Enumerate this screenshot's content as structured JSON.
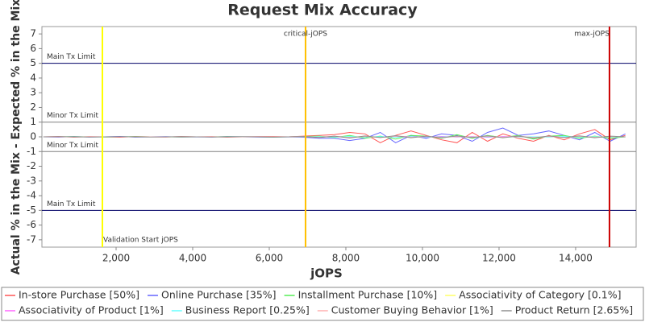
{
  "chart_data": {
    "type": "line",
    "title": "Request Mix Accuracy",
    "x_label": "jOPS",
    "y_label": "Actual % in the Mix - Expected % in the Mix",
    "xlim": [
      63,
      15580
    ],
    "ylim": [
      -7.5,
      7.5
    ],
    "xticks": [
      {
        "value": 2000,
        "label": "2,000"
      },
      {
        "value": 4000,
        "label": "4,000"
      },
      {
        "value": 6000,
        "label": "6,000"
      },
      {
        "value": 8000,
        "label": "8,000"
      },
      {
        "value": 10000,
        "label": "10,000"
      },
      {
        "value": 12000,
        "label": "12,000"
      },
      {
        "value": 14000,
        "label": "14,000"
      }
    ],
    "yticks": [
      -7,
      -6,
      -5,
      -4,
      -3,
      -2,
      -1,
      0,
      1,
      2,
      3,
      4,
      5,
      6,
      7
    ],
    "grid": false,
    "legend": "bottom",
    "hlines": [
      {
        "value": 5,
        "label": "Main Tx Limit",
        "color": "#000066"
      },
      {
        "value": 1,
        "label": "Minor Tx Limit",
        "color": "#808080"
      },
      {
        "value": -1,
        "label": "Minor Tx Limit",
        "color": "#808080"
      },
      {
        "value": -5,
        "label": "Main Tx Limit",
        "color": "#000066"
      }
    ],
    "vlines": [
      {
        "value": 1642,
        "label": "Validation Start jOPS",
        "color": "#ffff00"
      },
      {
        "value": 6947,
        "label": "critical-jOPS",
        "color": "#ffc000"
      },
      {
        "value": 14884,
        "label": "max-jOPS",
        "color": "#cc0000"
      }
    ],
    "x": [
      100,
      500,
      900,
      1300,
      1700,
      2100,
      2500,
      2900,
      3300,
      3700,
      4100,
      4500,
      4900,
      5300,
      5700,
      6100,
      6500,
      6900,
      7300,
      7700,
      8100,
      8500,
      8900,
      9300,
      9700,
      10100,
      10500,
      10900,
      11300,
      11700,
      12100,
      12500,
      12900,
      13300,
      13700,
      14100,
      14500,
      14900,
      15300
    ],
    "series": [
      {
        "name": "In-store Purchase [50%]",
        "color": "#ff5555",
        "values": [
          0,
          0.02,
          -0.02,
          0.01,
          0,
          -0.03,
          0.02,
          0,
          -0.01,
          0.02,
          0,
          0.01,
          -0.02,
          0,
          0.01,
          0.02,
          0,
          0.05,
          0.1,
          0.15,
          0.3,
          0.2,
          -0.4,
          0.1,
          0.4,
          0.1,
          -0.2,
          -0.4,
          0.3,
          -0.3,
          0.2,
          -0.1,
          -0.3,
          0.1,
          -0.2,
          0.2,
          0.5,
          -0.2,
          0.1
        ]
      },
      {
        "name": "Online Purchase [35%]",
        "color": "#6666ff",
        "values": [
          0,
          -0.02,
          0.02,
          -0.01,
          0,
          0.03,
          -0.02,
          0,
          0.01,
          -0.02,
          0,
          -0.01,
          0.02,
          0,
          -0.01,
          -0.02,
          0,
          -0.03,
          -0.1,
          -0.1,
          -0.25,
          -0.1,
          0.3,
          -0.4,
          0.1,
          -0.1,
          0.2,
          0.1,
          -0.3,
          0.3,
          0.6,
          0.1,
          0.2,
          0.4,
          0.1,
          -0.2,
          0.3,
          -0.3,
          0.2
        ]
      },
      {
        "name": "Installment Purchase [10%]",
        "color": "#55ee55",
        "values": [
          0,
          0,
          0.01,
          0,
          -0.01,
          0,
          0.01,
          0,
          0,
          -0.01,
          0,
          0,
          0.01,
          0,
          0,
          -0.01,
          0,
          0.02,
          0.05,
          -0.05,
          0.1,
          -0.1,
          0.05,
          -0.15,
          0.1,
          0.05,
          -0.1,
          0.15,
          -0.1,
          0.1,
          -0.05,
          0.1,
          -0.15,
          0.05,
          0.1,
          -0.1,
          0.05,
          -0.1,
          0
        ]
      },
      {
        "name": "Associativity of Category [0.1%]",
        "color": "#ffff66",
        "values": [
          0,
          0,
          0,
          0,
          0,
          0,
          0,
          0,
          0,
          0,
          0,
          0,
          0,
          0,
          0,
          0,
          0,
          0,
          0.01,
          -0.01,
          0.01,
          0,
          -0.01,
          0.01,
          0,
          -0.01,
          0.01,
          0,
          -0.01,
          0.01,
          0,
          0,
          -0.01,
          0.01,
          0,
          -0.01,
          0.01,
          0,
          0
        ]
      },
      {
        "name": "Associativity of Product [1%]",
        "color": "#ff66ff",
        "values": [
          0,
          0,
          0,
          0,
          0,
          0,
          0,
          0,
          0,
          0,
          0,
          0,
          0,
          0,
          0,
          0,
          0,
          0.01,
          -0.02,
          0.03,
          -0.02,
          0.02,
          -0.03,
          0.02,
          0.01,
          -0.02,
          0.03,
          -0.01,
          0.02,
          -0.03,
          0.02,
          0.01,
          -0.02,
          0.03,
          -0.01,
          0.02,
          -0.03,
          0.01,
          0
        ]
      },
      {
        "name": "Business Report [0.25%]",
        "color": "#66ffff",
        "values": [
          0,
          0,
          0,
          0,
          0,
          0,
          0,
          0,
          0,
          0,
          0,
          0,
          0,
          0,
          0,
          0,
          0,
          0,
          0.01,
          -0.01,
          0.02,
          -0.01,
          0.01,
          -0.02,
          0.01,
          0,
          -0.01,
          0.02,
          -0.01,
          0.01,
          -0.02,
          0.01,
          0,
          -0.01,
          0.02,
          -0.01,
          0.01,
          -0.01,
          0
        ]
      },
      {
        "name": "Customer Buying Behavior [1%]",
        "color": "#ffb0b0",
        "values": [
          0,
          0,
          0,
          0,
          0,
          0,
          0,
          0,
          0,
          0,
          0,
          0,
          0,
          0,
          0,
          0,
          0,
          0.02,
          -0.03,
          0.04,
          -0.05,
          0.03,
          -0.04,
          0.05,
          -0.03,
          0.04,
          -0.05,
          0.03,
          -0.02,
          0.04,
          -0.03,
          0.05,
          -0.04,
          0.03,
          -0.05,
          0.04,
          -0.03,
          0.02,
          0
        ]
      },
      {
        "name": "Product Return [2.65%]",
        "color": "#909090",
        "values": [
          0,
          0.01,
          0,
          -0.01,
          0,
          0.01,
          0,
          -0.01,
          0,
          0.01,
          0,
          -0.01,
          0,
          0.01,
          0,
          -0.01,
          0,
          0.02,
          -0.05,
          0.05,
          -0.08,
          0.06,
          -0.05,
          0.08,
          -0.06,
          0.05,
          -0.07,
          0.06,
          -0.05,
          0.07,
          -0.06,
          0.05,
          -0.08,
          0.06,
          -0.05,
          0.07,
          -0.06,
          0.05,
          0
        ]
      }
    ]
  }
}
